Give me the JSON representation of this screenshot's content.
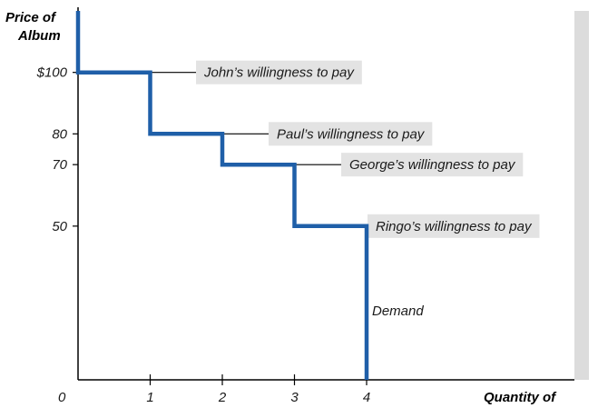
{
  "chart_data": {
    "type": "line",
    "title": "",
    "ylabel_line1": "Price of",
    "ylabel_line2": "Album",
    "xlabel": "Quantity of",
    "origin_label": "0",
    "xlim": [
      0,
      4.6
    ],
    "ylim": [
      0,
      120
    ],
    "x_ticks": [
      {
        "value": 1,
        "label": "1"
      },
      {
        "value": 2,
        "label": "2"
      },
      {
        "value": 3,
        "label": "3"
      },
      {
        "value": 4,
        "label": "4"
      }
    ],
    "y_ticks": [
      {
        "value": 100,
        "label": "$100"
      },
      {
        "value": 80,
        "label": "80"
      },
      {
        "value": 70,
        "label": "70"
      },
      {
        "value": 50,
        "label": "50"
      }
    ],
    "series": [
      {
        "name": "Demand",
        "step": true,
        "color": "#1f5fa8",
        "points": [
          [
            0,
            120
          ],
          [
            0,
            100
          ],
          [
            1,
            100
          ],
          [
            1,
            80
          ],
          [
            2,
            80
          ],
          [
            2,
            70
          ],
          [
            3,
            70
          ],
          [
            3,
            50
          ],
          [
            4,
            50
          ],
          [
            4,
            0
          ]
        ]
      }
    ],
    "annotations": [
      {
        "text": "John’s willingness to pay",
        "x": 0.5,
        "y": 100
      },
      {
        "text": "Paul’s willingness to pay",
        "x": 1.5,
        "y": 80
      },
      {
        "text": "George’s willingness to pay",
        "x": 2.5,
        "y": 70
      },
      {
        "text": "Ringo’s willingness to pay",
        "x": 4,
        "y": 50
      }
    ],
    "series_label": "Demand",
    "colors": {
      "demand_line": "#1f5fa8",
      "label_box": "#e3e3e3",
      "right_panel": "#dcdcdc",
      "axis": "#000000"
    }
  }
}
